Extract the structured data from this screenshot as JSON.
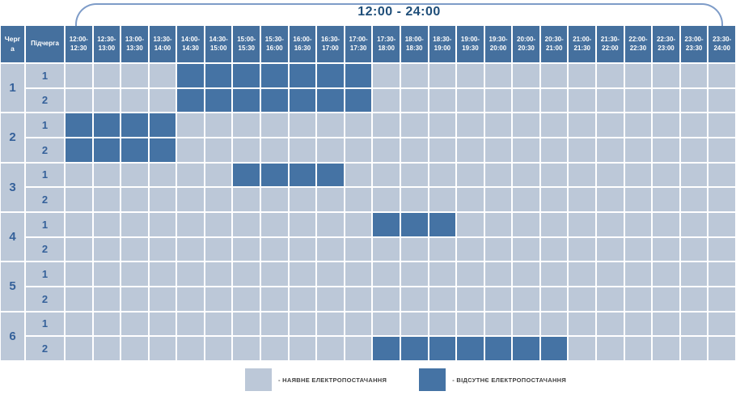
{
  "title": "12:00 - 24:00",
  "colors": {
    "header_bg": "#45709e",
    "power_on": "#bcc8d8",
    "power_off": "#4573a4",
    "bracket": "#7e9cc8",
    "title_text": "#1f4e79",
    "row_label_text": "#35619a"
  },
  "table": {
    "corner_headers": [
      "Черга",
      "Підчерга"
    ],
    "time_slots": [
      {
        "line1": "12:00-",
        "line2": "12:30"
      },
      {
        "line1": "12:30-",
        "line2": "13:00"
      },
      {
        "line1": "13:00-",
        "line2": "13:30"
      },
      {
        "line1": "13:30-",
        "line2": "14:00"
      },
      {
        "line1": "14:00-",
        "line2": "14:30"
      },
      {
        "line1": "14:30-",
        "line2": "15:00"
      },
      {
        "line1": "15:00-",
        "line2": "15:30"
      },
      {
        "line1": "15:30-",
        "line2": "16:00"
      },
      {
        "line1": "16:00-",
        "line2": "16:30"
      },
      {
        "line1": "16:30-",
        "line2": "17:00"
      },
      {
        "line1": "17:00-",
        "line2": "17:30"
      },
      {
        "line1": "17:30-",
        "line2": "18:00"
      },
      {
        "line1": "18:00-",
        "line2": "18:30"
      },
      {
        "line1": "18:30-",
        "line2": "19:00"
      },
      {
        "line1": "19:00-",
        "line2": "19:30"
      },
      {
        "line1": "19:30-",
        "line2": "20:00"
      },
      {
        "line1": "20:00-",
        "line2": "20:30"
      },
      {
        "line1": "20:30-",
        "line2": "21:00"
      },
      {
        "line1": "21:00-",
        "line2": "21:30"
      },
      {
        "line1": "21:30-",
        "line2": "22:00"
      },
      {
        "line1": "22:00-",
        "line2": "22:30"
      },
      {
        "line1": "22:30-",
        "line2": "23:00"
      },
      {
        "line1": "23:00-",
        "line2": "23:30"
      },
      {
        "line1": "23:30-",
        "line2": "24:00"
      }
    ],
    "queues": [
      {
        "label": "1",
        "subqueues": [
          {
            "label": "1",
            "off_slots": [
              4,
              5,
              6,
              7,
              8,
              9,
              10
            ]
          },
          {
            "label": "2",
            "off_slots": [
              4,
              5,
              6,
              7,
              8,
              9,
              10
            ]
          }
        ]
      },
      {
        "label": "2",
        "subqueues": [
          {
            "label": "1",
            "off_slots": [
              0,
              1,
              2,
              3
            ]
          },
          {
            "label": "2",
            "off_slots": [
              0,
              1,
              2,
              3
            ]
          }
        ]
      },
      {
        "label": "3",
        "subqueues": [
          {
            "label": "1",
            "off_slots": [
              6,
              7,
              8,
              9
            ]
          },
          {
            "label": "2",
            "off_slots": []
          }
        ]
      },
      {
        "label": "4",
        "subqueues": [
          {
            "label": "1",
            "off_slots": [
              11,
              12,
              13
            ]
          },
          {
            "label": "2",
            "off_slots": []
          }
        ]
      },
      {
        "label": "5",
        "subqueues": [
          {
            "label": "1",
            "off_slots": []
          },
          {
            "label": "2",
            "off_slots": []
          }
        ]
      },
      {
        "label": "6",
        "subqueues": [
          {
            "label": "1",
            "off_slots": []
          },
          {
            "label": "2",
            "off_slots": [
              11,
              12,
              13,
              14,
              15,
              16,
              17
            ]
          }
        ]
      }
    ]
  },
  "legend": {
    "on_label": "- НАЯВНЕ ЕЛЕКТРОПОСТАЧАННЯ",
    "off_label": "- ВІДСУТНЄ ЕЛЕКТРОПОСТАЧАННЯ"
  },
  "chart_data": {
    "type": "heatmap",
    "title": "12:00 - 24:00",
    "x_categories": [
      "12:00-12:30",
      "12:30-13:00",
      "13:00-13:30",
      "13:30-14:00",
      "14:00-14:30",
      "14:30-15:00",
      "15:00-15:30",
      "15:30-16:00",
      "16:00-16:30",
      "16:30-17:00",
      "17:00-17:30",
      "17:30-18:00",
      "18:00-18:30",
      "18:30-19:00",
      "19:00-19:30",
      "19:30-20:00",
      "20:00-20:30",
      "20:30-21:00",
      "21:00-21:30",
      "21:30-22:00",
      "22:00-22:30",
      "22:30-23:00",
      "23:00-23:30",
      "23:30-24:00"
    ],
    "y_categories": [
      "Черга 1 / Підчерга 1",
      "Черга 1 / Підчерга 2",
      "Черга 2 / Підчерга 1",
      "Черга 2 / Підчерга 2",
      "Черга 3 / Підчерга 1",
      "Черга 3 / Підчерга 2",
      "Черга 4 / Підчерга 1",
      "Черга 4 / Підчерга 2",
      "Черга 5 / Підчерга 1",
      "Черга 5 / Підчерга 2",
      "Черга 6 / Підчерга 1",
      "Черга 6 / Підчерга 2"
    ],
    "values_note": "1 = outage (відсутнє електропостачання), 0 = power on (наявне)",
    "values": [
      [
        0,
        0,
        0,
        0,
        1,
        1,
        1,
        1,
        1,
        1,
        1,
        0,
        0,
        0,
        0,
        0,
        0,
        0,
        0,
        0,
        0,
        0,
        0,
        0
      ],
      [
        0,
        0,
        0,
        0,
        1,
        1,
        1,
        1,
        1,
        1,
        1,
        0,
        0,
        0,
        0,
        0,
        0,
        0,
        0,
        0,
        0,
        0,
        0,
        0
      ],
      [
        1,
        1,
        1,
        1,
        0,
        0,
        0,
        0,
        0,
        0,
        0,
        0,
        0,
        0,
        0,
        0,
        0,
        0,
        0,
        0,
        0,
        0,
        0,
        0
      ],
      [
        1,
        1,
        1,
        1,
        0,
        0,
        0,
        0,
        0,
        0,
        0,
        0,
        0,
        0,
        0,
        0,
        0,
        0,
        0,
        0,
        0,
        0,
        0,
        0
      ],
      [
        0,
        0,
        0,
        0,
        0,
        0,
        1,
        1,
        1,
        1,
        0,
        0,
        0,
        0,
        0,
        0,
        0,
        0,
        0,
        0,
        0,
        0,
        0,
        0
      ],
      [
        0,
        0,
        0,
        0,
        0,
        0,
        0,
        0,
        0,
        0,
        0,
        0,
        0,
        0,
        0,
        0,
        0,
        0,
        0,
        0,
        0,
        0,
        0,
        0
      ],
      [
        0,
        0,
        0,
        0,
        0,
        0,
        0,
        0,
        0,
        0,
        0,
        1,
        1,
        1,
        0,
        0,
        0,
        0,
        0,
        0,
        0,
        0,
        0,
        0
      ],
      [
        0,
        0,
        0,
        0,
        0,
        0,
        0,
        0,
        0,
        0,
        0,
        0,
        0,
        0,
        0,
        0,
        0,
        0,
        0,
        0,
        0,
        0,
        0,
        0
      ],
      [
        0,
        0,
        0,
        0,
        0,
        0,
        0,
        0,
        0,
        0,
        0,
        0,
        0,
        0,
        0,
        0,
        0,
        0,
        0,
        0,
        0,
        0,
        0,
        0
      ],
      [
        0,
        0,
        0,
        0,
        0,
        0,
        0,
        0,
        0,
        0,
        0,
        0,
        0,
        0,
        0,
        0,
        0,
        0,
        0,
        0,
        0,
        0,
        0,
        0
      ],
      [
        0,
        0,
        0,
        0,
        0,
        0,
        0,
        0,
        0,
        0,
        0,
        0,
        0,
        0,
        0,
        0,
        0,
        0,
        0,
        0,
        0,
        0,
        0,
        0
      ],
      [
        0,
        0,
        0,
        0,
        0,
        0,
        0,
        0,
        0,
        0,
        0,
        1,
        1,
        1,
        1,
        1,
        1,
        1,
        0,
        0,
        0,
        0,
        0,
        0
      ]
    ],
    "legend_entries": [
      {
        "label": "- НАЯВНЕ ЕЛЕКТРОПОСТАЧАННЯ",
        "color": "#bcc8d8"
      },
      {
        "label": "- ВІДСУТНЄ ЕЛЕКТРОПОСТАЧАННЯ",
        "color": "#4573a4"
      }
    ]
  }
}
